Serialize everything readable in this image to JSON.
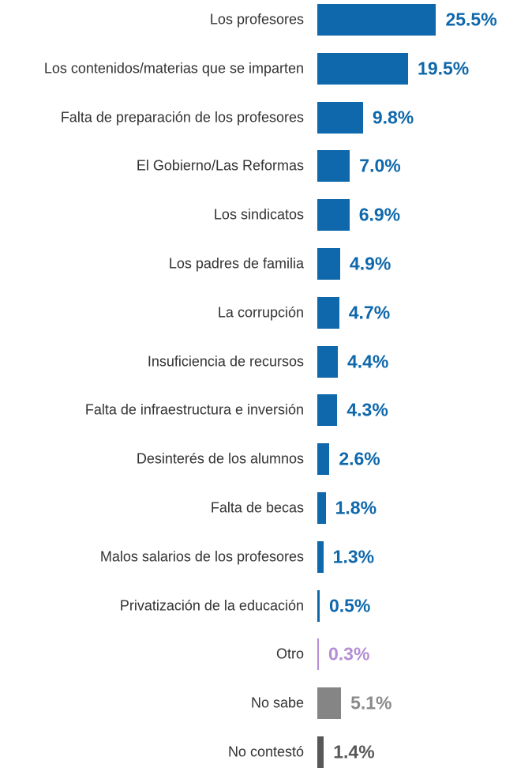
{
  "chart_data": {
    "type": "bar",
    "orientation": "horizontal",
    "categories": [
      "Los profesores",
      "Los contenidos/materias que se imparten",
      "Falta de preparación de los profesores",
      "El Gobierno/Las Reformas",
      "Los sindicatos",
      "Los padres de familia",
      "La corrupción",
      "Insuficiencia de recursos",
      "Falta de infraestructura e inversión",
      "Desinterés de los alumnos",
      "Falta de becas",
      "Malos salarios de los profesores",
      "Privatización de la educación",
      "Otro",
      "No sabe",
      "No contestó"
    ],
    "values": [
      25.5,
      19.5,
      9.8,
      7.0,
      6.9,
      4.9,
      4.7,
      4.4,
      4.3,
      2.6,
      1.8,
      1.3,
      0.5,
      0.3,
      5.1,
      1.4
    ],
    "value_labels": [
      "25.5%",
      "19.5%",
      "9.8%",
      "7.0%",
      "6.9%",
      "4.9%",
      "4.7%",
      "4.4%",
      "4.3%",
      "2.6%",
      "1.8%",
      "1.3%",
      "0.5%",
      "0.3%",
      "5.1%",
      "1.4%"
    ],
    "colors": [
      "#0f68ab",
      "#0f68ab",
      "#0f68ab",
      "#0f68ab",
      "#0f68ab",
      "#0f68ab",
      "#0f68ab",
      "#0f68ab",
      "#0f68ab",
      "#0f68ab",
      "#0f68ab",
      "#0f68ab",
      "#0f68ab",
      "#b48ed4",
      "#858585",
      "#585858"
    ],
    "label_colors": [
      "#0f68ab",
      "#0f68ab",
      "#0f68ab",
      "#0f68ab",
      "#0f68ab",
      "#0f68ab",
      "#0f68ab",
      "#0f68ab",
      "#0f68ab",
      "#0f68ab",
      "#0f68ab",
      "#0f68ab",
      "#0f68ab",
      "#b48ed4",
      "#8a8a8a",
      "#585858"
    ]
  }
}
